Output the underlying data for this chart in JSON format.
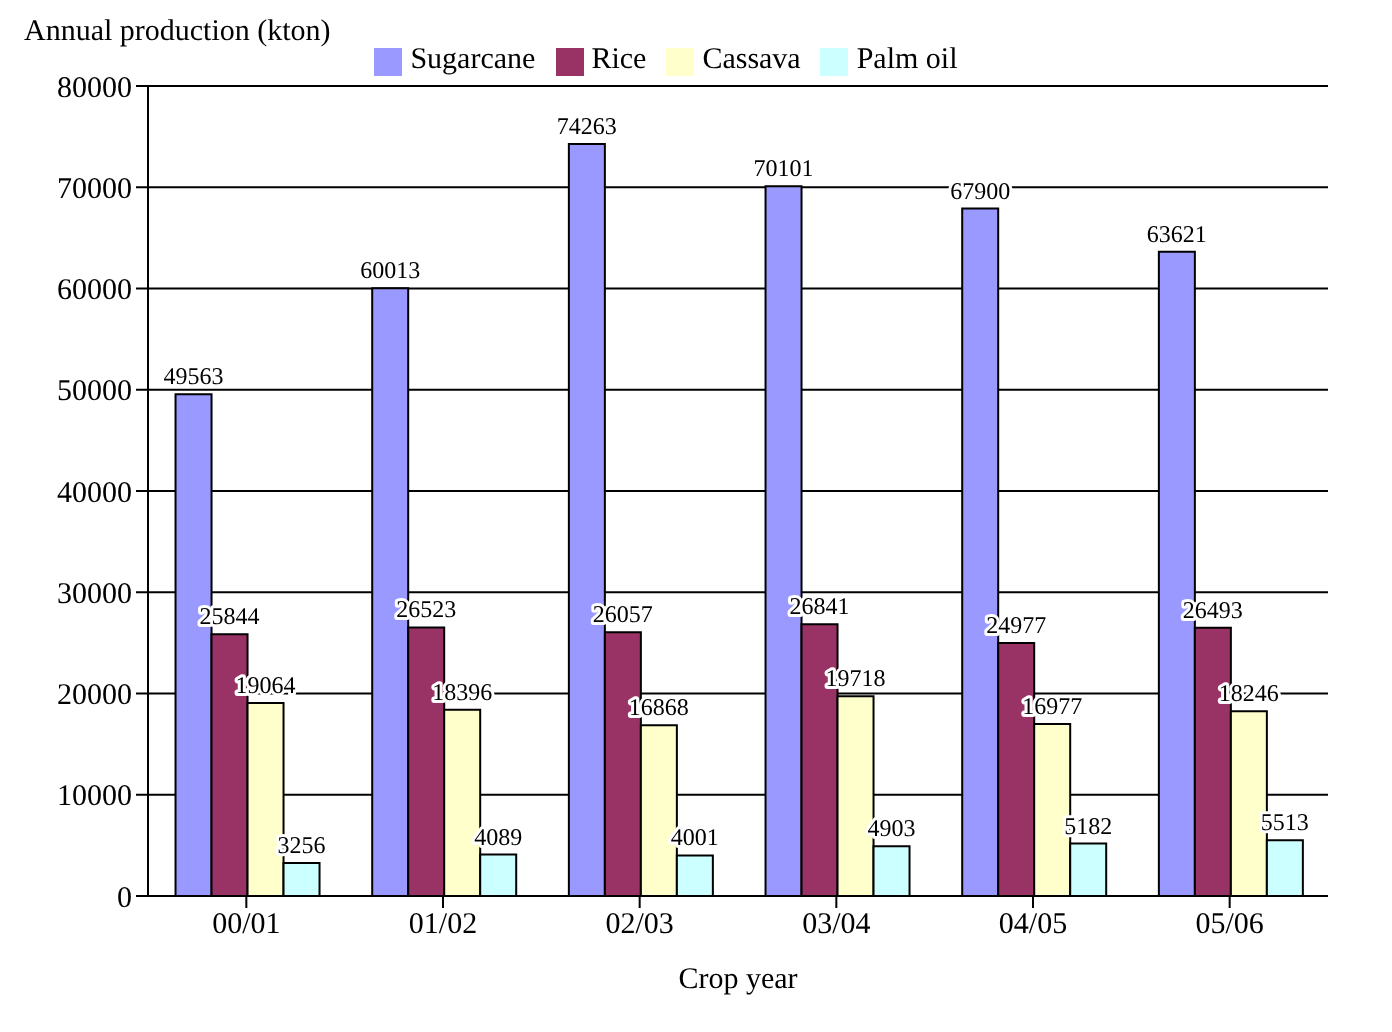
{
  "chart_data": {
    "type": "bar",
    "ylabel": "Annual production (kton)",
    "xlabel": "Crop year",
    "categories": [
      "00/01",
      "01/02",
      "02/03",
      "03/04",
      "04/05",
      "05/06"
    ],
    "series": [
      {
        "name": "Sugarcane",
        "color": "#9999ff",
        "values": [
          49563,
          60013,
          74263,
          70101,
          67900,
          63621
        ]
      },
      {
        "name": "Rice",
        "color": "#993366",
        "values": [
          25844,
          26523,
          26057,
          26841,
          24977,
          26493
        ]
      },
      {
        "name": "Cassava",
        "color": "#ffffcc",
        "values": [
          19064,
          18396,
          16868,
          19718,
          16977,
          18246
        ]
      },
      {
        "name": "Palm oil",
        "color": "#ccffff",
        "values": [
          3256,
          4089,
          4001,
          4903,
          5182,
          5513
        ]
      }
    ],
    "ylim": [
      0,
      80000
    ],
    "yticks": [
      0,
      10000,
      20000,
      30000,
      40000,
      50000,
      60000,
      70000,
      80000
    ],
    "grid": "y",
    "legend": "top",
    "data_labels": true
  }
}
